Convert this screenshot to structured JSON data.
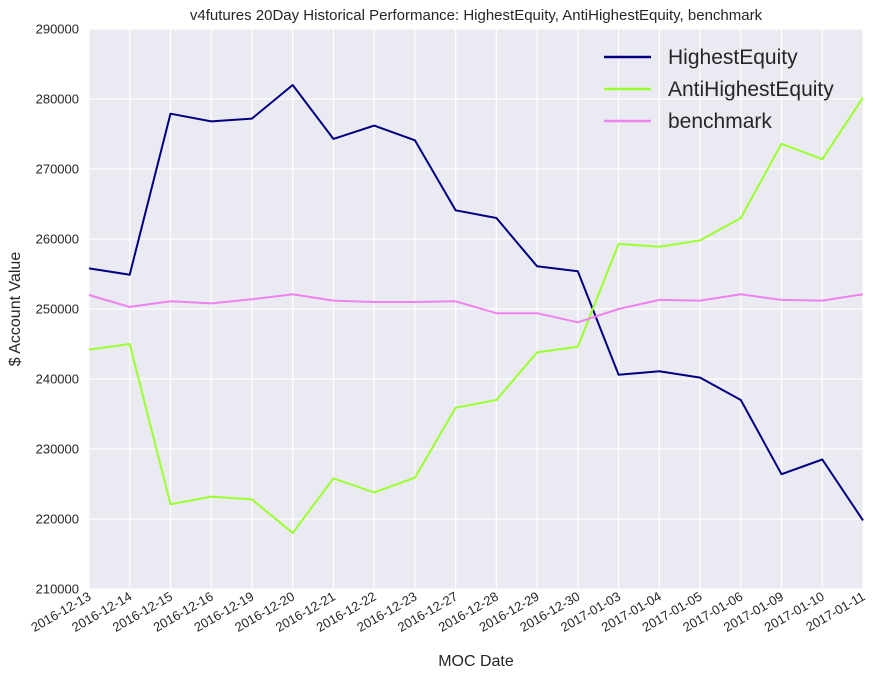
{
  "chart_data": {
    "type": "line",
    "title": "v4futures 20Day Historical Performance: HighestEquity, AntiHighestEquity, benchmark",
    "xlabel": "MOC Date",
    "ylabel": "$ Account Value",
    "ylim": [
      210000,
      290000
    ],
    "yticks": [
      210000,
      220000,
      230000,
      240000,
      250000,
      260000,
      270000,
      280000,
      290000
    ],
    "grid": true,
    "legend_position": "top-right",
    "categories": [
      "2016-12-13",
      "2016-12-14",
      "2016-12-15",
      "2016-12-16",
      "2016-12-19",
      "2016-12-20",
      "2016-12-21",
      "2016-12-22",
      "2016-12-23",
      "2016-12-27",
      "2016-12-28",
      "2016-12-29",
      "2016-12-30",
      "2017-01-03",
      "2017-01-04",
      "2017-01-05",
      "2017-01-06",
      "2017-01-09",
      "2017-01-10",
      "2017-01-11"
    ],
    "series": [
      {
        "name": "HighestEquity",
        "color": "#000080",
        "values": [
          255800,
          254900,
          277900,
          276800,
          277200,
          282000,
          274300,
          276200,
          274100,
          264100,
          263000,
          256100,
          255400,
          240600,
          241100,
          240200,
          237000,
          226400,
          228500,
          219800
        ]
      },
      {
        "name": "AntiHighestEquity",
        "color": "#9AFF2E",
        "values": [
          244200,
          245000,
          222100,
          223200,
          222800,
          218000,
          225800,
          223800,
          225900,
          235900,
          237000,
          243800,
          244600,
          259300,
          258900,
          259800,
          263000,
          273600,
          271400,
          280200
        ]
      },
      {
        "name": "benchmark",
        "color": "#EE82EE",
        "values": [
          252000,
          250300,
          251100,
          250800,
          251400,
          252100,
          251200,
          251000,
          251000,
          251100,
          249400,
          249400,
          248100,
          250000,
          251300,
          251200,
          252100,
          251300,
          251200,
          252100
        ]
      }
    ],
    "style": {
      "plot_background": "#EAEAF2",
      "grid_color": "#FFFFFF"
    }
  }
}
